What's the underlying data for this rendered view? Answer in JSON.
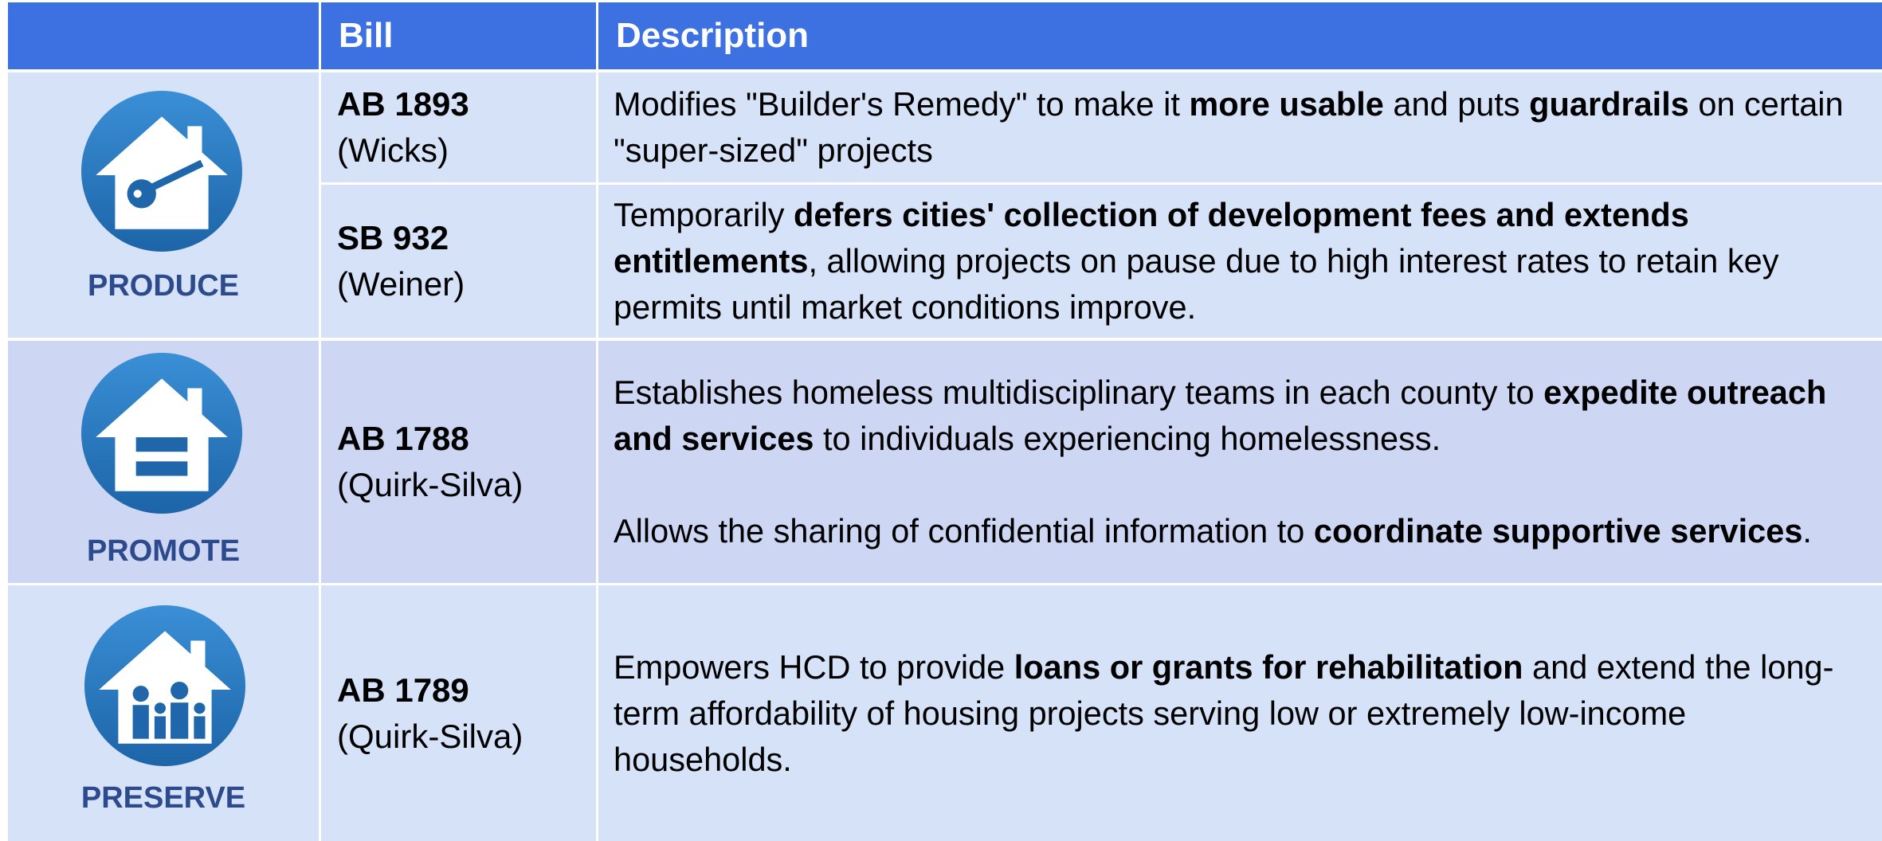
{
  "header": {
    "columns": [
      "Bill",
      "Description"
    ]
  },
  "groups": [
    {
      "label": "PRODUCE",
      "bills": [
        {
          "id": "AB 1893",
          "author": "(Wicks)",
          "description": [
            [
              {
                "text": "Modifies \"Builder's Remedy\" to make it ",
                "bold": false
              },
              {
                "text": "more usable",
                "bold": true
              },
              {
                "text": " and puts ",
                "bold": false
              },
              {
                "text": "guardrails",
                "bold": true
              },
              {
                "text": " on certain \"super-sized\" projects",
                "bold": false
              }
            ]
          ]
        },
        {
          "id": "SB 932",
          "author": "(Weiner)",
          "description": [
            [
              {
                "text": "Temporarily ",
                "bold": false
              },
              {
                "text": "defers cities' collection of development fees and extends entitlements",
                "bold": true
              },
              {
                "text": ", allowing projects on pause due to high interest rates to retain key permits until market conditions improve.",
                "bold": false
              }
            ]
          ]
        }
      ]
    },
    {
      "label": "PROMOTE",
      "bills": [
        {
          "id": "AB 1788",
          "author": "(Quirk-Silva)",
          "description": [
            [
              {
                "text": "Establishes homeless multidisciplinary teams in each county to ",
                "bold": false
              },
              {
                "text": "expedite outreach and services",
                "bold": true
              },
              {
                "text": " to individuals experiencing homelessness.",
                "bold": false
              }
            ],
            [
              {
                "text": "Allows the sharing of confidential information to ",
                "bold": false
              },
              {
                "text": "coordinate supportive services",
                "bold": true
              },
              {
                "text": ".",
                "bold": false
              }
            ]
          ]
        }
      ]
    },
    {
      "label": "PRESERVE",
      "bills": [
        {
          "id": "AB 1789",
          "author": "(Quirk-Silva)",
          "description": [
            [
              {
                "text": "Empowers HCD to provide ",
                "bold": false
              },
              {
                "text": "loans or grants for rehabilitation",
                "bold": true
              },
              {
                "text": " and extend the long-term affordability of housing projects serving low or extremely low-income households.",
                "bold": false
              }
            ]
          ]
        }
      ]
    }
  ]
}
